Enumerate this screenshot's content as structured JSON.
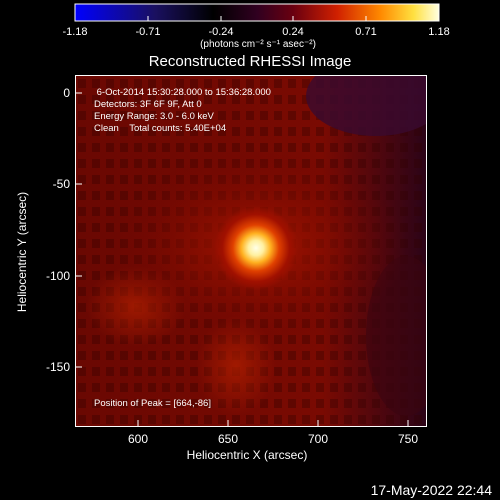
{
  "colorbar": {
    "ticks": [
      "-1.18",
      "-0.71",
      "-0.24",
      "0.24",
      "0.71",
      "1.18"
    ],
    "units": "(photons cm⁻² s⁻¹ asec⁻²)"
  },
  "plot": {
    "title": "Reconstructed RHESSI Image",
    "annotations": [
      " 6-Oct-2014 15:30:28.000 to 15:36:28.000",
      "Detectors: 3F 6F 9F, Att 0",
      "Energy Range: 3.0 - 6.0 keV",
      "Clean    Total counts: 5.40E+04"
    ],
    "peak_label": "Position of Peak = [664,-86]",
    "x_ticks": [
      "600",
      "650",
      "700",
      "750"
    ],
    "y_ticks": [
      "0",
      "-50",
      "-100",
      "-150"
    ],
    "xlabel": "Heliocentric X (arcsec)",
    "ylabel": "Heliocentric Y (arcsec)"
  },
  "timestamp": "17-May-2022 22:44"
}
